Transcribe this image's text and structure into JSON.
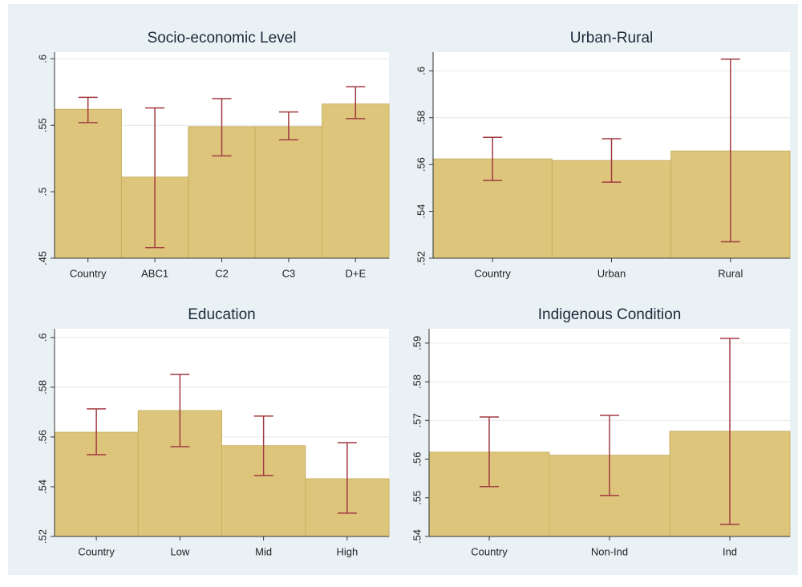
{
  "chart_data": [
    {
      "type": "bar",
      "title": "Socio-economic Level",
      "categories": [
        "Country",
        "ABC1",
        "C2",
        "C3",
        "D+E"
      ],
      "values": [
        0.562,
        0.511,
        0.549,
        0.549,
        0.566
      ],
      "error_low": [
        0.552,
        0.458,
        0.527,
        0.539,
        0.555
      ],
      "error_high": [
        0.571,
        0.563,
        0.57,
        0.56,
        0.579
      ],
      "ylim": [
        0.45,
        0.605
      ],
      "yticks": [
        {
          "value": 0.45,
          "label": ".45"
        },
        {
          "value": 0.5,
          "label": ".5"
        },
        {
          "value": 0.55,
          "label": ".55"
        },
        {
          "value": 0.6,
          "label": ".6"
        }
      ],
      "grid": true,
      "color": "#ddc67b",
      "error_color": "#a23a40"
    },
    {
      "type": "bar",
      "title": "Urban-Rural",
      "categories": [
        "Country",
        "Urban",
        "Rural"
      ],
      "values": [
        0.5624,
        0.5617,
        0.5658
      ],
      "error_low": [
        0.5532,
        0.5525,
        0.527
      ],
      "error_high": [
        0.5716,
        0.571,
        0.605
      ],
      "ylim": [
        0.52,
        0.608
      ],
      "yticks": [
        {
          "value": 0.52,
          "label": ".52"
        },
        {
          "value": 0.54,
          "label": ".54"
        },
        {
          "value": 0.56,
          "label": ".56"
        },
        {
          "value": 0.58,
          "label": ".58"
        },
        {
          "value": 0.6,
          "label": ".6"
        }
      ],
      "grid": true,
      "color": "#ddc67b",
      "error_color": "#a23a40"
    },
    {
      "type": "bar",
      "title": "Education",
      "categories": [
        "Country",
        "Low",
        "Mid",
        "High"
      ],
      "values": [
        0.5619,
        0.5706,
        0.5565,
        0.5432
      ],
      "error_low": [
        0.5529,
        0.5561,
        0.5445,
        0.5294
      ],
      "error_high": [
        0.5713,
        0.5852,
        0.5684,
        0.5577
      ],
      "ylim": [
        0.52,
        0.6035
      ],
      "yticks": [
        {
          "value": 0.52,
          "label": ".52"
        },
        {
          "value": 0.54,
          "label": ".54"
        },
        {
          "value": 0.56,
          "label": ".56"
        },
        {
          "value": 0.58,
          "label": ".58"
        },
        {
          "value": 0.6,
          "label": ".6"
        }
      ],
      "grid": true,
      "color": "#ddc67b",
      "error_color": "#a23a40"
    },
    {
      "type": "bar",
      "title": "Indigenous Condition",
      "categories": [
        "Country",
        "Non-Ind",
        "Ind"
      ],
      "values": [
        0.5618,
        0.561,
        0.5672
      ],
      "error_low": [
        0.5529,
        0.5506,
        0.5431
      ],
      "error_high": [
        0.5709,
        0.5713,
        0.5912
      ],
      "ylim": [
        0.54,
        0.5937
      ],
      "yticks": [
        {
          "value": 0.54,
          "label": ".54"
        },
        {
          "value": 0.55,
          "label": ".55"
        },
        {
          "value": 0.56,
          "label": ".56"
        },
        {
          "value": 0.57,
          "label": ".57"
        },
        {
          "value": 0.58,
          "label": ".58"
        },
        {
          "value": 0.59,
          "label": ".59"
        }
      ],
      "grid": true,
      "color": "#ddc67b",
      "error_color": "#a23a40"
    }
  ]
}
